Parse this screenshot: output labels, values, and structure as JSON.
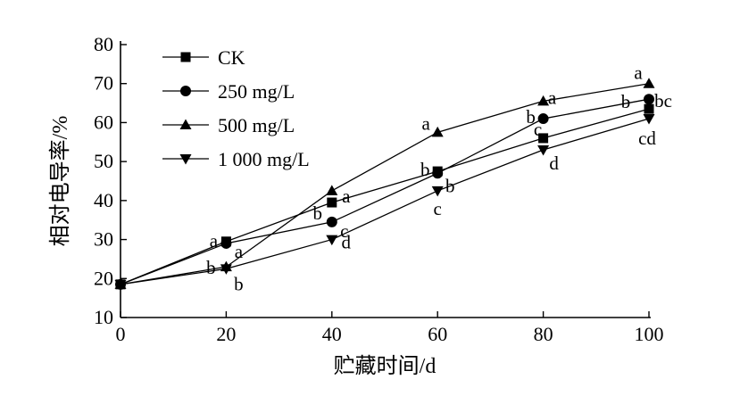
{
  "chart_data": {
    "type": "line",
    "xlabel": "贮藏时间/d",
    "ylabel": "相对电导率/%",
    "xlim": [
      0,
      100
    ],
    "ylim": [
      10,
      80
    ],
    "xticks": [
      "0",
      "20",
      "40",
      "60",
      "80",
      "100"
    ],
    "yticks": [
      "10",
      "20",
      "30",
      "40",
      "50",
      "60",
      "70",
      "80"
    ],
    "grid": false,
    "legend_position": "top-left",
    "x": [
      0,
      20,
      40,
      60,
      80,
      100
    ],
    "series": [
      {
        "name": "CK",
        "marker": "square",
        "values": [
          18.5,
          29.5,
          39.5,
          47.5,
          56,
          63.5
        ],
        "labels": [
          "",
          "a",
          "b",
          "b",
          "c",
          "b"
        ]
      },
      {
        "name": "250 mg/L",
        "marker": "circle",
        "values": [
          18.5,
          29,
          34.5,
          47,
          61,
          66
        ],
        "labels": [
          "",
          "a",
          "c",
          "b",
          "b",
          "bc"
        ]
      },
      {
        "name": "500 mg/L",
        "marker": "triangle-up",
        "values": [
          18.5,
          23,
          42.5,
          57.5,
          65.5,
          70
        ],
        "labels": [
          "",
          "b",
          "a",
          "a",
          "a",
          "a"
        ]
      },
      {
        "name": "1 000 mg/L",
        "marker": "triangle-down",
        "values": [
          18.5,
          22.5,
          30,
          42.5,
          53,
          61
        ],
        "labels": [
          "",
          "b",
          "d",
          "c",
          "d",
          "cd"
        ]
      }
    ]
  }
}
